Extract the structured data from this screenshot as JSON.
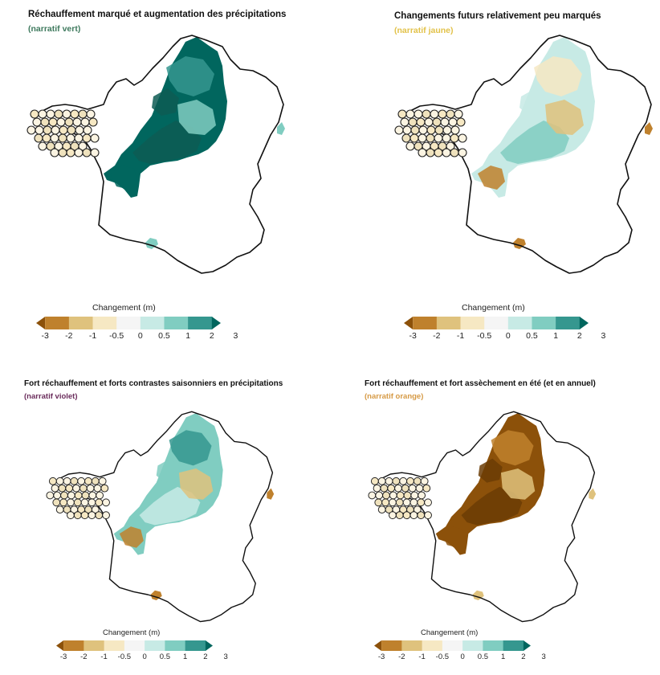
{
  "legend": {
    "title": "Changement (m)",
    "tick_labels": [
      "-3",
      "-2",
      "-1",
      "-0.5",
      "0",
      "0.5",
      "1",
      "2",
      "3"
    ],
    "colors": [
      "#8c510a",
      "#bf812d",
      "#dfc27d",
      "#f6e8c3",
      "#f5f5f5",
      "#c7eae5",
      "#80cdc1",
      "#35978f",
      "#01665e"
    ]
  },
  "panels": [
    {
      "title": "Réchauffement marqué et augmentation des précipitations",
      "subtitle": "(narratif vert)",
      "subtitle_color": "#3f7a5e",
      "fill_colors": [
        "#01665e",
        "#0d5c53",
        "#35978f",
        "#80cdc1"
      ]
    },
    {
      "title": "Changements futurs relativement peu marqués",
      "subtitle": "(narratif jaune)",
      "subtitle_color": "#e2c24a",
      "fill_colors": [
        "#c7eae5",
        "#80cdc1",
        "#f6e8c3",
        "#dfc27d",
        "#bf812d"
      ]
    },
    {
      "title": "Fort réchauffement et forts contrastes saisonniers en précipitations",
      "subtitle": "(narratif violet)",
      "subtitle_color": "#6b2d5c",
      "fill_colors": [
        "#80cdc1",
        "#c7eae5",
        "#35978f",
        "#dfc27d",
        "#bf812d"
      ]
    },
    {
      "title": "Fort réchauffement et fort assèchement en été (et en annuel)",
      "subtitle": "(narratif orange)",
      "subtitle_color": "#d69a45",
      "fill_colors": [
        "#8c510a",
        "#6b3c05",
        "#bf812d",
        "#dfc27d"
      ]
    }
  ]
}
